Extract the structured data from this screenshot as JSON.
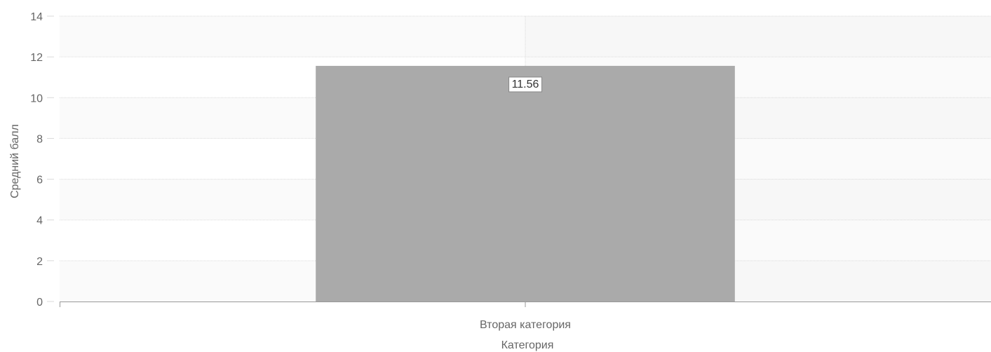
{
  "chart_data": {
    "type": "bar",
    "categories": [
      "Вторая категория"
    ],
    "values": [
      11.56
    ],
    "data_labels": [
      "11.56"
    ],
    "xlabel": "Категория",
    "ylabel": "Средний балл",
    "ylim": [
      0,
      14
    ],
    "yticks": [
      0,
      2,
      4,
      6,
      8,
      10,
      12,
      14
    ],
    "grid": true,
    "legend": "none",
    "colors": {
      "bar": "#aaaaaa",
      "band_light": "#fafafa",
      "band_dark": "#f4f4f4",
      "grid": "#d9d9d9",
      "axis": "#999999",
      "text": "#666666"
    }
  }
}
